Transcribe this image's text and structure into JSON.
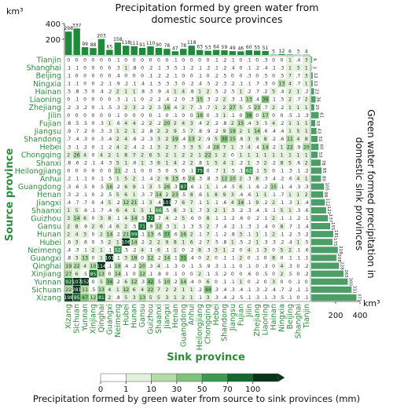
{
  "chart_data": {
    "type": "heatmap",
    "top_title": "Precipitation formed by green water from\ndomestic source provinces",
    "top_unit": "km³",
    "right_title": "Green water formed precipitation in\ndomestic sink provinces",
    "right_unit": "km³",
    "ylabel": "Source province",
    "xlabel": "Sink province",
    "colorbar_label": "Precipitation formed by green water from source to sink provinces (mm)",
    "colorbar_ticks": [
      "0",
      "1",
      "10",
      "30",
      "50",
      "70",
      "100"
    ],
    "colorbar_colors": [
      "#ffffff",
      "#e3f1dc",
      "#b4dca7",
      "#7fc37b",
      "#3f9a4f",
      "#17672e",
      "#06351a"
    ],
    "top_axis_ticks": [
      "200",
      "400"
    ],
    "right_axis_ticks": [
      "200",
      "400"
    ],
    "x_categories": [
      "Xizang",
      "Sichuan",
      "Yunnan",
      "Xinjiang",
      "Qinghai",
      "Guangxi",
      "Neimeng",
      "Hubei",
      "Hunan",
      "Gansu",
      "Guizhou",
      "Shaanxi",
      "Jiangxi",
      "Henan",
      "Guangdong",
      "Anhui",
      "Heilongjiang",
      "Chongqing",
      "Hebei",
      "Shandong",
      "Jiangsu",
      "Fujian",
      "Jilin",
      "Zhejiang",
      "Liaoning",
      "Hainan",
      "Ningxia",
      "Beijing",
      "Shanghai",
      "Tianjin"
    ],
    "y_categories": [
      "Tianjin",
      "Shanghai",
      "Beijing",
      "Ningxia",
      "Hainan",
      "Liaoning",
      "Zhejiang",
      "Jilin",
      "Fujian",
      "Jiangsu",
      "Shandong",
      "Hebei",
      "Chongqing",
      "Shanxi",
      "Heilongjiang",
      "Anhui",
      "Guangdong",
      "Henan",
      "Jiangxi",
      "Shaanxi",
      "Guizhou",
      "Gansu",
      "Hunan",
      "Hubei",
      "Neimeng",
      "Guangxi",
      "Qinghai",
      "Xinjiang",
      "Yunnan",
      "Sichuan",
      "Xizang"
    ],
    "top_bar_values": [
      298,
      337,
      99,
      88,
      203,
      65,
      158,
      118,
      111,
      91,
      110,
      90,
      78,
      47,
      78,
      118,
      63,
      53,
      64,
      59,
      49,
      46,
      60,
      55,
      51,
      5,
      12,
      6,
      3,
      4
    ],
    "top_bar_labels": [
      "298",
      "337",
      "99",
      "88",
      "203",
      "65",
      "158",
      "118",
      "111",
      "91",
      "110",
      "90",
      "78",
      "47",
      "78",
      "118",
      "63",
      "53",
      "64",
      "59",
      "49",
      "46",
      "60",
      "55",
      "51",
      "5",
      "12",
      "6",
      "3",
      "4"
    ],
    "right_bar_values": [
      6,
      3,
      12,
      12,
      23,
      36,
      25,
      61,
      33,
      43,
      52,
      60,
      53,
      78,
      85,
      80,
      105,
      98,
      112,
      122,
      137,
      155,
      181,
      175,
      218,
      208,
      228,
      265,
      300,
      331,
      371
    ],
    "right_bar_labels": [
      "6",
      "3",
      "12",
      "12",
      "23",
      "36",
      "25",
      "61",
      "33",
      "43",
      "52",
      "60",
      "53",
      "78",
      "85",
      "80",
      "105",
      "98",
      "112",
      "122",
      "137",
      "155",
      "181",
      "175",
      "218",
      "208",
      "228",
      "265",
      "300",
      "331",
      "371"
    ],
    "top_ylim": [
      0,
      400
    ],
    "right_xlim": [
      0,
      400
    ],
    "cell_values": [
      [
        0,
        0,
        0,
        0,
        0,
        0,
        0.1,
        0,
        0,
        0,
        0,
        0,
        0,
        0.1,
        0,
        0,
        0,
        0,
        0.1,
        0.2,
        0.1,
        0,
        0.1,
        0,
        0.3,
        0,
        0,
        1,
        0.4,
        3
      ],
      [
        0.1,
        0.1,
        0,
        0,
        0,
        0,
        0.3,
        1,
        0.8,
        0,
        0.2,
        0.1,
        0.3,
        0.5,
        0.1,
        0.2,
        0.1,
        0.2,
        0.1,
        0.2,
        0.4,
        0,
        0.1,
        0.2,
        0.4,
        0.1,
        0.3,
        1,
        3,
        1
      ],
      [
        0.1,
        0,
        0,
        0,
        0,
        0,
        0.4,
        0,
        0,
        0,
        0.1,
        0.2,
        0.2,
        0.1,
        0,
        0,
        0.1,
        0,
        0.2,
        0.5,
        0,
        0,
        0.3,
        0,
        0.5,
        0,
        0.5,
        7,
        0.7,
        3
      ],
      [
        0.1,
        0.1,
        0,
        0,
        0.2,
        0.1,
        0.9,
        0.2,
        0.1,
        0.4,
        0.1,
        0.5,
        0.3,
        0.3,
        0,
        0.2,
        0.4,
        0.5,
        0.2,
        0.3,
        0.2,
        0.1,
        0.1,
        0.7,
        0.3,
        0,
        13,
        4,
        0.7,
        1
      ],
      [
        0.5,
        0.8,
        0.3,
        0,
        0.4,
        0.2,
        1.8,
        1,
        1.2,
        0.8,
        0.3,
        0.9,
        0.4,
        1,
        4,
        0.8,
        1,
        2,
        0.5,
        0.2,
        0.5,
        1,
        0.2,
        0.7,
        0.2,
        5,
        0.4,
        2,
        1,
        0.2
      ],
      [
        0,
        0.1,
        0,
        0,
        0,
        0,
        0.3,
        0.1,
        0.1,
        0,
        0.2,
        0.2,
        0.4,
        0.2,
        0,
        0.3,
        15,
        0.3,
        0.2,
        2,
        0.3,
        0.1,
        13,
        0.4,
        36,
        0.1,
        0.5,
        2,
        0.7,
        2
      ],
      [
        0.2,
        0.3,
        0.2,
        0,
        0.1,
        0.5,
        0.3,
        2,
        3,
        0.2,
        2,
        0.5,
        16,
        0.6,
        2,
        7,
        0.3,
        0.7,
        1,
        2,
        27,
        5,
        0.5,
        23,
        0.7,
        2,
        0.2,
        1,
        1,
        1
      ],
      [
        0,
        0,
        0,
        0,
        0,
        0,
        0.1,
        0,
        0,
        0,
        0,
        0.1,
        0,
        0.1,
        0,
        0,
        18,
        0,
        0.3,
        1,
        0.1,
        0,
        38,
        0,
        17,
        0,
        0,
        0.5,
        0.1,
        0.3
      ],
      [
        0.8,
        0.5,
        0.5,
        0,
        0.3,
        1,
        0.6,
        4,
        4,
        0.2,
        1.8,
        0.2,
        20,
        1.5,
        4,
        3,
        0.4,
        1.9,
        0.2,
        0.8,
        2,
        15,
        0.4,
        3,
        0.5,
        4,
        0.2,
        1,
        1,
        1
      ],
      [
        0.9,
        0.7,
        0.2,
        0,
        0.3,
        0.3,
        1,
        2,
        1.2,
        0.2,
        0.8,
        1.6,
        2,
        9,
        0.5,
        7,
        0.8,
        0.9,
        0.2,
        9,
        19,
        2,
        1,
        14,
        0.6,
        0.4,
        0.4,
        1,
        5,
        1
      ],
      [
        0.7,
        0.4,
        0.3,
        0,
        0.3,
        0.4,
        1.5,
        4,
        0.6,
        0.2,
        0.3,
        3,
        2,
        19,
        0.4,
        13,
        2,
        0.9,
        5,
        30,
        15,
        0.8,
        3,
        9,
        8,
        0.2,
        0.6,
        11,
        4,
        8
      ],
      [
        0.3,
        0.1,
        0.2,
        0,
        0.1,
        0.2,
        4,
        1.5,
        0.4,
        0.2,
        0.1,
        3,
        1.5,
        7,
        0.3,
        3,
        5,
        0.4,
        28,
        7,
        1.4,
        0.3,
        3.5,
        0.4,
        14,
        0.2,
        1,
        22,
        0.9,
        20
      ],
      [
        2,
        26,
        4,
        0,
        4,
        2,
        1,
        8,
        7,
        2,
        6,
        5,
        2,
        1,
        2,
        2,
        1,
        22,
        1,
        2,
        0,
        1,
        1,
        1,
        1,
        1,
        1,
        1,
        1,
        1
      ],
      [
        0.8,
        0.6,
        0.2,
        0.1,
        0.4,
        0.3,
        5,
        1,
        0.6,
        1,
        0.3,
        6,
        1,
        4,
        0.2,
        2,
        0.8,
        1,
        5,
        4,
        1,
        0.2,
        1,
        0.3,
        2,
        0.2,
        8,
        5,
        0.6,
        2
      ],
      [
        0,
        0,
        0,
        0,
        0,
        0,
        11,
        0.2,
        0.1,
        0,
        0,
        0.5,
        0,
        0.5,
        0,
        0.1,
        75,
        0,
        0.7,
        1,
        0.5,
        0.1,
        62,
        0.1,
        5,
        0,
        0.1,
        0.3,
        0.1,
        0.2
      ],
      [
        0.2,
        0.1,
        0.1,
        0,
        0.1,
        0.5,
        1,
        5,
        2,
        0.1,
        0.4,
        2,
        6,
        13,
        0.6,
        24,
        0.3,
        0.8,
        0.3,
        12,
        10,
        1.5,
        0.3,
        8,
        0.3,
        0.4,
        0.2,
        0.6,
        4,
        1
      ],
      [
        0.3,
        0.6,
        0.5,
        0,
        0.5,
        16,
        0.2,
        6,
        9,
        0.1,
        2.5,
        0.5,
        26,
        0.3,
        87,
        0.6,
        0.1,
        1,
        0.1,
        0.4,
        0.5,
        6,
        0.1,
        0.6,
        0.2,
        15,
        0.1,
        0.4,
        0.3,
        0.3
      ],
      [
        0.3,
        0.2,
        0.1,
        0,
        0.2,
        0.5,
        5,
        6,
        1,
        0.3,
        0.7,
        14,
        2,
        23,
        0.5,
        8,
        0.6,
        1,
        8,
        9,
        3,
        0.4,
        0.6,
        1,
        1,
        0.1,
        0.7,
        1,
        1,
        2
      ],
      [
        0.4,
        0.7,
        0.7,
        0,
        0.4,
        5,
        0.2,
        12,
        21,
        0.1,
        3,
        0.4,
        101,
        0.7,
        6,
        7,
        0.1,
        1,
        0.1,
        0.6,
        4,
        14,
        0.1,
        9,
        0.2,
        2,
        0.1,
        0.3,
        1,
        0.4
      ],
      [
        1,
        5,
        0.6,
        0.1,
        0.7,
        0.4,
        6,
        4,
        1,
        5,
        1,
        66,
        0.5,
        8,
        0.3,
        1,
        0.7,
        3,
        1.5,
        1,
        0.5,
        0.2,
        0.3,
        0.4,
        0.5,
        0.1,
        5,
        1,
        0.3,
        0.6
      ],
      [
        3,
        14,
        6,
        0,
        3,
        8,
        0.1,
        4,
        14,
        0.5,
        72,
        0.7,
        4,
        0.2,
        5,
        0.6,
        0,
        8,
        0.1,
        0.1,
        0.2,
        0.6,
        0,
        0.2,
        0.1,
        1.5,
        0.1,
        0.1,
        0.2,
        0.1
      ],
      [
        2,
        8,
        0.9,
        1.5,
        6,
        0.4,
        6,
        2,
        0.5,
        71,
        0.9,
        12,
        0.3,
        1,
        0.1,
        0.3,
        0.5,
        2,
        0.7,
        0.4,
        0.2,
        0.1,
        0.3,
        0.1,
        0.4,
        0,
        8,
        0.7,
        0.1,
        0.4
      ],
      [
        1.5,
        4,
        3,
        0,
        1.5,
        14,
        0.2,
        21,
        99,
        0.1,
        13,
        0.6,
        37,
        0.6,
        16,
        2,
        0.1,
        7,
        0.1,
        0.2,
        0.8,
        3,
        0.1,
        1,
        0.1,
        2,
        0.1,
        0.2,
        0.3,
        0.2
      ],
      [
        0.6,
        3,
        0.6,
        0,
        0.5,
        2,
        1,
        106,
        14,
        0.2,
        2,
        2,
        9,
        8,
        1,
        6,
        0.2,
        7,
        0.5,
        0.8,
        1,
        0.5,
        0.2,
        1,
        0.3,
        0.3,
        0.2,
        0.4,
        1,
        0.5
      ],
      [
        0.4,
        0.3,
        0.1,
        2,
        1,
        0.1,
        52,
        0.5,
        0.2,
        4,
        0.1,
        6,
        0.1,
        1,
        0,
        0.2,
        8,
        0.3,
        3,
        1,
        0.2,
        0,
        4,
        0.1,
        3,
        0,
        5,
        2,
        0.1,
        0.6
      ],
      [
        0.8,
        3,
        13,
        0,
        1,
        101,
        0.1,
        3,
        18,
        0,
        12,
        0.2,
        14,
        0.1,
        31,
        0.4,
        0,
        2,
        0,
        0.1,
        0.1,
        1.5,
        0,
        0.1,
        0,
        8,
        0,
        0.1,
        0.1,
        0.1
      ],
      [
        19,
        22,
        4,
        10,
        114,
        0.1,
        18,
        0.4,
        0.2,
        20,
        0.3,
        4,
        0.1,
        0.3,
        0,
        0.1,
        0.5,
        0.9,
        0.3,
        0.1,
        0.1,
        0,
        0.1,
        0,
        0.3,
        0,
        4,
        0.3,
        0,
        0.2
      ],
      [
        27,
        6,
        0.5,
        85,
        13,
        0,
        14,
        0.1,
        0,
        12,
        0.1,
        0.8,
        0,
        0.1,
        0,
        0,
        2,
        0.1,
        0.5,
        0.2,
        0,
        0,
        0.6,
        0,
        0.5,
        0,
        2,
        0.5,
        0,
        0.2
      ],
      [
        92,
        107,
        152,
        0,
        5,
        34,
        0.2,
        6,
        12,
        0.3,
        42,
        0.5,
        10,
        0.2,
        14,
        0.4,
        0,
        6,
        0,
        0.1,
        0.1,
        1,
        0,
        0.2,
        0,
        3,
        0,
        0,
        0.1,
        0
      ],
      [
        22,
        281,
        11,
        0.5,
        13,
        4,
        1,
        12,
        6,
        4,
        22,
        7,
        2,
        2,
        1,
        1,
        0.2,
        44,
        0.3,
        0.4,
        0.3,
        0.4,
        0.1,
        0.3,
        0.2,
        0.4,
        0.7,
        0.2,
        0.1,
        0.1
      ],
      [
        198,
        95,
        47,
        12,
        81,
        2,
        0.8,
        5,
        3,
        13,
        5,
        5,
        3,
        1,
        2,
        1,
        0.1,
        3,
        0.3,
        0.4,
        0.2,
        0.5,
        0.1,
        0.3,
        0.1,
        0.3,
        0.5,
        0.1,
        0,
        0.1
      ]
    ]
  }
}
